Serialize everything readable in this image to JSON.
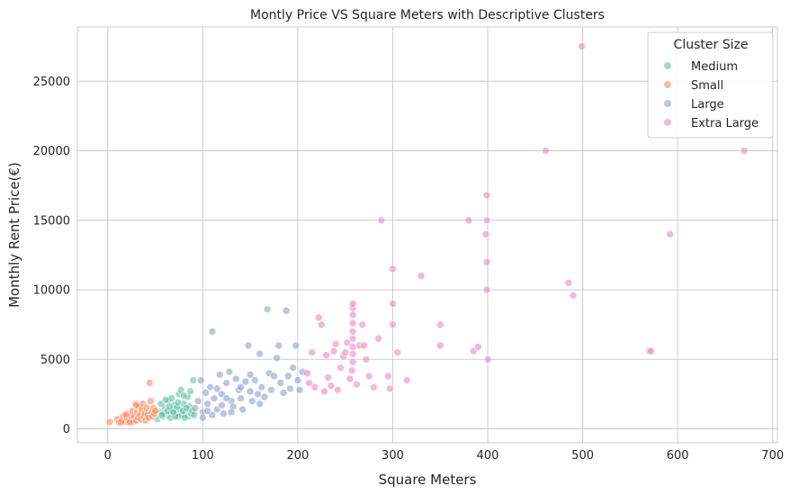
{
  "chart_data": {
    "type": "scatter",
    "title": "Montly Price VS Square Meters with Descriptive Clusters",
    "xlabel": "Square Meters",
    "ylabel": "Monthly Rent Price(€)",
    "xlim": [
      -32,
      705
    ],
    "ylim": [
      -1000,
      28900
    ],
    "xticks": [
      0,
      100,
      200,
      300,
      400,
      500,
      600,
      700
    ],
    "yticks": [
      0,
      5000,
      10000,
      15000,
      20000,
      25000
    ],
    "grid": true,
    "legend": {
      "title": "Cluster Size",
      "placement": "top-right",
      "entries": [
        "Medium",
        "Small",
        "Large",
        "Extra Large"
      ]
    },
    "series": [
      {
        "name": "Medium",
        "color": "#66c2a5",
        "points": [
          [
            52,
            700
          ],
          [
            55,
            1200
          ],
          [
            58,
            900
          ],
          [
            60,
            1500
          ],
          [
            62,
            1000
          ],
          [
            64,
            2000
          ],
          [
            66,
            800
          ],
          [
            68,
            1300
          ],
          [
            70,
            1700
          ],
          [
            72,
            1100
          ],
          [
            74,
            900
          ],
          [
            75,
            2500
          ],
          [
            76,
            1400
          ],
          [
            78,
            1000
          ],
          [
            80,
            1800
          ],
          [
            82,
            1200
          ],
          [
            84,
            2300
          ],
          [
            85,
            900
          ],
          [
            86,
            1600
          ],
          [
            88,
            1100
          ],
          [
            90,
            3500
          ],
          [
            56,
            1800
          ],
          [
            59,
            1100
          ],
          [
            63,
            1300
          ],
          [
            67,
            2200
          ],
          [
            71,
            900
          ],
          [
            73,
            1600
          ],
          [
            77,
            2800
          ],
          [
            79,
            1300
          ],
          [
            81,
            800
          ],
          [
            83,
            1500
          ],
          [
            87,
            2700
          ],
          [
            89,
            1300
          ],
          [
            91,
            1000
          ],
          [
            65,
            1600
          ],
          [
            69,
            1200
          ],
          [
            57,
            1000
          ],
          [
            61,
            2100
          ],
          [
            74,
            1900
          ],
          [
            80,
            2400
          ]
        ]
      },
      {
        "name": "Small",
        "color": "#fc8d62",
        "points": [
          [
            2,
            500
          ],
          [
            10,
            700
          ],
          [
            12,
            450
          ],
          [
            15,
            600
          ],
          [
            16,
            900
          ],
          [
            18,
            500
          ],
          [
            20,
            800
          ],
          [
            20,
            1100
          ],
          [
            22,
            600
          ],
          [
            24,
            1000
          ],
          [
            25,
            700
          ],
          [
            26,
            1300
          ],
          [
            27,
            500
          ],
          [
            28,
            900
          ],
          [
            29,
            1800
          ],
          [
            30,
            600
          ],
          [
            31,
            1200
          ],
          [
            32,
            800
          ],
          [
            33,
            1600
          ],
          [
            34,
            1000
          ],
          [
            35,
            700
          ],
          [
            36,
            1400
          ],
          [
            37,
            1800
          ],
          [
            38,
            900
          ],
          [
            39,
            1100
          ],
          [
            40,
            600
          ],
          [
            41,
            1500
          ],
          [
            42,
            1000
          ],
          [
            43,
            800
          ],
          [
            44,
            3300
          ],
          [
            45,
            2000
          ],
          [
            46,
            1200
          ],
          [
            47,
            900
          ],
          [
            48,
            1500
          ],
          [
            49,
            1100
          ],
          [
            50,
            1300
          ],
          [
            19,
            1000
          ],
          [
            23,
            450
          ],
          [
            14,
            500
          ],
          [
            30,
            1700
          ]
        ]
      },
      {
        "name": "Large",
        "color": "#8da0cb",
        "points": [
          [
            92,
            1500
          ],
          [
            95,
            2000
          ],
          [
            98,
            3500
          ],
          [
            100,
            1200
          ],
          [
            103,
            2600
          ],
          [
            105,
            1800
          ],
          [
            108,
            3000
          ],
          [
            110,
            7000
          ],
          [
            112,
            2200
          ],
          [
            115,
            1400
          ],
          [
            118,
            3900
          ],
          [
            120,
            2500
          ],
          [
            122,
            1100
          ],
          [
            125,
            3300
          ],
          [
            128,
            4100
          ],
          [
            130,
            2000
          ],
          [
            132,
            1600
          ],
          [
            135,
            3600
          ],
          [
            138,
            2800
          ],
          [
            140,
            2200
          ],
          [
            142,
            1400
          ],
          [
            145,
            3400
          ],
          [
            148,
            6000
          ],
          [
            150,
            2700
          ],
          [
            152,
            2000
          ],
          [
            155,
            3500
          ],
          [
            158,
            2500
          ],
          [
            160,
            5400
          ],
          [
            162,
            3000
          ],
          [
            165,
            2300
          ],
          [
            168,
            8600
          ],
          [
            170,
            4000
          ],
          [
            172,
            2800
          ],
          [
            175,
            3800
          ],
          [
            178,
            5100
          ],
          [
            180,
            6000
          ],
          [
            182,
            3300
          ],
          [
            185,
            2600
          ],
          [
            188,
            8500
          ],
          [
            190,
            3800
          ],
          [
            192,
            2900
          ],
          [
            195,
            4400
          ],
          [
            198,
            6000
          ],
          [
            200,
            3500
          ],
          [
            202,
            2800
          ],
          [
            205,
            4100
          ],
          [
            100,
            800
          ],
          [
            110,
            1000
          ],
          [
            120,
            1700
          ],
          [
            130,
            1200
          ],
          [
            140,
            3000
          ],
          [
            150,
            3900
          ],
          [
            160,
            1800
          ],
          [
            125,
            2200
          ],
          [
            115,
            2900
          ],
          [
            105,
            1300
          ]
        ]
      },
      {
        "name": "Extra Large",
        "color": "#e78ac3",
        "points": [
          [
            210,
            4000
          ],
          [
            212,
            3300
          ],
          [
            215,
            5500
          ],
          [
            218,
            3000
          ],
          [
            222,
            8000
          ],
          [
            225,
            7500
          ],
          [
            228,
            2700
          ],
          [
            230,
            5300
          ],
          [
            232,
            3700
          ],
          [
            235,
            3100
          ],
          [
            238,
            5600
          ],
          [
            240,
            6100
          ],
          [
            242,
            2800
          ],
          [
            245,
            4400
          ],
          [
            248,
            5200
          ],
          [
            250,
            5500
          ],
          [
            252,
            6200
          ],
          [
            255,
            3600
          ],
          [
            257,
            4200
          ],
          [
            258,
            4800
          ],
          [
            258,
            5400
          ],
          [
            258,
            5900
          ],
          [
            258,
            6500
          ],
          [
            258,
            7000
          ],
          [
            258,
            7600
          ],
          [
            258,
            8200
          ],
          [
            258,
            8700
          ],
          [
            258,
            9000
          ],
          [
            262,
            3200
          ],
          [
            265,
            6000
          ],
          [
            268,
            7500
          ],
          [
            270,
            6000
          ],
          [
            272,
            5000
          ],
          [
            275,
            3800
          ],
          [
            280,
            3000
          ],
          [
            285,
            6500
          ],
          [
            288,
            15000
          ],
          [
            295,
            3800
          ],
          [
            297,
            2900
          ],
          [
            300,
            9000
          ],
          [
            300,
            7500
          ],
          [
            300,
            11500
          ],
          [
            305,
            5500
          ],
          [
            315,
            3500
          ],
          [
            330,
            11000
          ],
          [
            350,
            7500
          ],
          [
            350,
            6000
          ],
          [
            380,
            15000
          ],
          [
            385,
            5600
          ],
          [
            390,
            5900
          ],
          [
            398,
            14000
          ],
          [
            399,
            15000
          ],
          [
            399,
            16800
          ],
          [
            399,
            12000
          ],
          [
            399,
            10000
          ],
          [
            400,
            5000
          ],
          [
            461,
            20000
          ],
          [
            485,
            10500
          ],
          [
            490,
            9600
          ],
          [
            499,
            27500
          ],
          [
            570,
            5600
          ],
          [
            572,
            5600
          ],
          [
            592,
            14000
          ],
          [
            670,
            20000
          ]
        ]
      }
    ]
  }
}
